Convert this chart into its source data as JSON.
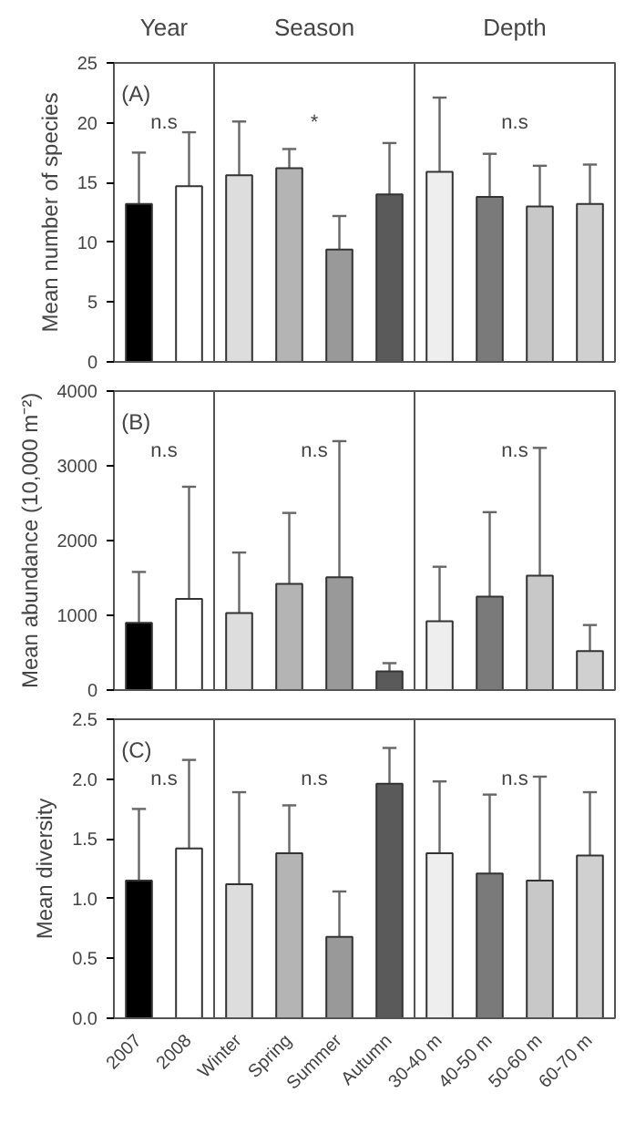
{
  "chart_data": [
    {
      "type": "bar",
      "ylabel": "Mean number of species",
      "categories": [
        "2007",
        "2008",
        "Winter",
        "Spring",
        "Summer",
        "Autumn",
        "30-40 m",
        "40-50 m",
        "50-60 m",
        "60-70 m"
      ],
      "values": [
        13.2,
        14.7,
        15.6,
        16.2,
        9.4,
        14.0,
        15.9,
        13.8,
        13.0,
        13.2
      ],
      "errors": [
        [
          13.2,
          17.5
        ],
        [
          14.7,
          19.2
        ],
        [
          15.6,
          20.1
        ],
        [
          16.2,
          17.8
        ],
        [
          9.4,
          12.2
        ],
        [
          14.0,
          18.3
        ],
        [
          15.9,
          22.1
        ],
        [
          13.8,
          17.4
        ],
        [
          13.0,
          16.4
        ],
        [
          13.2,
          16.5
        ]
      ],
      "colors": [
        "#000000",
        "#ffffff",
        "#dddddd",
        "#b4b4b4",
        "#999999",
        "#5a5a5a",
        "#eeeeee",
        "#7a7a7a",
        "#c8c8c8",
        "#d0d0d0"
      ],
      "ylim": [
        0,
        25
      ],
      "yticks": [
        0,
        5,
        10,
        15,
        20,
        25
      ],
      "tick_labels": "y",
      "annotations": [
        "Year",
        "Season",
        "Depth",
        "(A)",
        "n.s",
        "*",
        "n.s"
      ]
    },
    {
      "type": "bar",
      "ylabel": "Mean abundance (10,000 m⁻²)",
      "categories": [
        "2007",
        "2008",
        "Winter",
        "Spring",
        "Summer",
        "Autumn",
        "30-40 m",
        "40-50 m",
        "50-60 m",
        "60-70 m"
      ],
      "values": [
        900,
        1220,
        1030,
        1420,
        1510,
        250,
        920,
        1250,
        1530,
        520
      ],
      "errors": [
        [
          900,
          1580
        ],
        [
          1220,
          2720
        ],
        [
          1030,
          1840
        ],
        [
          1420,
          2370
        ],
        [
          1510,
          3330
        ],
        [
          250,
          360
        ],
        [
          920,
          1650
        ],
        [
          1250,
          2380
        ],
        [
          1530,
          3240
        ],
        [
          520,
          870
        ]
      ],
      "colors": [
        "#000000",
        "#ffffff",
        "#dddddd",
        "#b4b4b4",
        "#999999",
        "#5a5a5a",
        "#eeeeee",
        "#7a7a7a",
        "#c8c8c8",
        "#d0d0d0"
      ],
      "ylim": [
        0,
        4000
      ],
      "yticks": [
        0,
        1000,
        2000,
        3000,
        4000
      ],
      "tick_labels": "y",
      "annotations": [
        "(B)",
        "n.s",
        "n.s",
        "n.s"
      ]
    },
    {
      "type": "bar",
      "ylabel": "Mean diversity",
      "categories": [
        "2007",
        "2008",
        "Winter",
        "Spring",
        "Summer",
        "Autumn",
        "30-40 m",
        "40-50 m",
        "50-60 m",
        "60-70 m"
      ],
      "values": [
        1.15,
        1.42,
        1.12,
        1.38,
        0.68,
        1.96,
        1.38,
        1.21,
        1.15,
        1.36
      ],
      "errors": [
        [
          1.15,
          1.75
        ],
        [
          1.42,
          2.16
        ],
        [
          1.12,
          1.89
        ],
        [
          1.38,
          1.78
        ],
        [
          0.68,
          1.06
        ],
        [
          1.96,
          2.26
        ],
        [
          1.38,
          1.98
        ],
        [
          1.21,
          1.87
        ],
        [
          1.15,
          2.02
        ],
        [
          1.36,
          1.89
        ]
      ],
      "colors": [
        "#000000",
        "#ffffff",
        "#dddddd",
        "#b4b4b4",
        "#999999",
        "#5a5a5a",
        "#eeeeee",
        "#7a7a7a",
        "#c8c8c8",
        "#d0d0d0"
      ],
      "ylim": [
        0,
        2.5
      ],
      "yticks": [
        {
          "value": 0,
          "label": "0.0"
        },
        {
          "value": 0.5,
          "label": "0.5"
        },
        {
          "value": 1,
          "label": "1.0"
        },
        {
          "value": 1.5,
          "label": "1.5"
        },
        {
          "value": 2,
          "label": "2.0"
        },
        {
          "value": 2.5,
          "label": "2.5"
        }
      ],
      "annotations": [
        "(C)",
        "n.s",
        "n.s",
        "n.s"
      ]
    }
  ]
}
